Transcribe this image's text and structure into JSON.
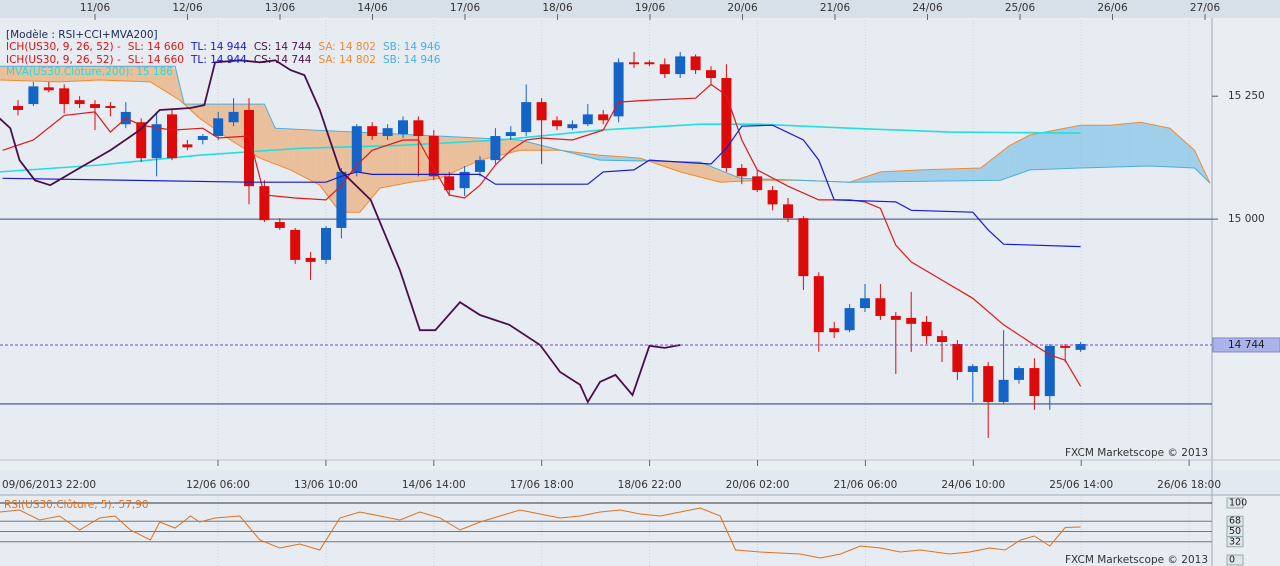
{
  "legend_header": "[Modèle : RSI+CCI+MVA200]",
  "watermark": "FXCM Marketscope © 2013",
  "chart_data": [
    {
      "type": "candlestick",
      "ylim": [
        14510,
        15405
      ],
      "yticks": [
        {
          "value": 15250,
          "label": "15 250"
        },
        {
          "value": 15000,
          "label": "15 000"
        }
      ],
      "hlines": [
        15000,
        14624
      ],
      "last_price": {
        "value": 14744,
        "label": "14 744"
      },
      "top_labels": [
        "11/06",
        "12/06",
        "13/06",
        "14/06",
        "17/06",
        "18/06",
        "19/06",
        "20/06",
        "21/06",
        "24/06",
        "25/06",
        "26/06",
        "27/06"
      ],
      "x_labels": [
        "09/06/2013 22:00",
        "12/06 06:00",
        "13/06 10:00",
        "14/06 14:00",
        "17/06 18:00",
        "18/06 22:00",
        "20/06 02:00",
        "21/06 06:00",
        "24/06 10:00",
        "25/06 14:00",
        "26/06 18:00"
      ],
      "up_color": "#1464c8",
      "down_color": "#dd0a0a",
      "open": [
        15230,
        15234,
        15268,
        15266,
        15242,
        15234,
        15230,
        15193,
        15197,
        15124,
        15213,
        15152,
        15161,
        15169,
        15197,
        15222,
        15067,
        14994,
        14978,
        14921,
        14917,
        14982,
        15096,
        15189,
        15169,
        15173,
        15201,
        15169,
        15087,
        15063,
        15096,
        15120,
        15169,
        15177,
        15238,
        15201,
        15185,
        15193,
        15213,
        15209,
        15319,
        15319,
        15315,
        15295,
        15331,
        15303,
        15287,
        15104,
        15087,
        15059,
        15030,
        15002,
        14884,
        14778,
        14774,
        14819,
        14839,
        14803,
        14799,
        14791,
        14762,
        14746,
        14689,
        14701,
        14628,
        14673,
        14697,
        14640,
        14742,
        14734
      ],
      "high": [
        15242,
        15279,
        15279,
        15274,
        15250,
        15242,
        15238,
        15238,
        15205,
        15218,
        15222,
        15161,
        15173,
        15218,
        15246,
        15246,
        15079,
        15002,
        14982,
        14933,
        14986,
        15104,
        15193,
        15197,
        15193,
        15209,
        15209,
        15181,
        15096,
        15108,
        15128,
        15185,
        15189,
        15274,
        15246,
        15209,
        15201,
        15234,
        15222,
        15327,
        15340,
        15323,
        15327,
        15340,
        15335,
        15311,
        15315,
        15112,
        15100,
        15067,
        15043,
        15006,
        14892,
        14791,
        14827,
        14868,
        14868,
        14811,
        14852,
        14803,
        14774,
        14754,
        14705,
        14709,
        14774,
        14701,
        14717,
        14746,
        14746,
        14750
      ],
      "low": [
        15211,
        15230,
        15258,
        15215,
        15226,
        15181,
        15209,
        15185,
        15116,
        15087,
        15120,
        15140,
        15152,
        15161,
        15189,
        15030,
        14994,
        14978,
        14909,
        14876,
        14909,
        14961,
        15087,
        15161,
        15161,
        15165,
        15087,
        15079,
        15047,
        15047,
        15087,
        15112,
        15161,
        15169,
        15112,
        15181,
        15181,
        15189,
        15193,
        15197,
        15307,
        15311,
        15287,
        15287,
        15295,
        15274,
        15096,
        15071,
        15055,
        15018,
        14994,
        14856,
        14730,
        14758,
        14770,
        14811,
        14795,
        14685,
        14730,
        14746,
        14709,
        14673,
        14628,
        14555,
        14624,
        14665,
        14612,
        14612,
        14709,
        14730
      ],
      "close": [
        15222,
        15270,
        15262,
        15234,
        15234,
        15226,
        15226,
        15218,
        15124,
        15193,
        15124,
        15146,
        15169,
        15205,
        15218,
        15067,
        14998,
        14982,
        14917,
        14913,
        14982,
        15096,
        15189,
        15169,
        15185,
        15201,
        15169,
        15087,
        15059,
        15096,
        15120,
        15169,
        15177,
        15238,
        15201,
        15189,
        15193,
        15213,
        15201,
        15319,
        15315,
        15315,
        15295,
        15331,
        15303,
        15287,
        15104,
        15087,
        15059,
        15030,
        15002,
        14884,
        14770,
        14770,
        14819,
        14839,
        14803,
        14795,
        14787,
        14762,
        14750,
        14689,
        14701,
        14628,
        14673,
        14697,
        14640,
        14742,
        14738,
        14746
      ],
      "indicators": [
        {
          "label": "ICH(US30, 9, 26, 52) -",
          "color": "#dd1010",
          "series": [
            {
              "name": "SL: 14 660",
              "color": "#e01818",
              "x": [
                -1,
                1,
                3,
                5,
                6,
                7,
                8,
                10,
                12,
                13,
                15,
                16,
                18,
                20,
                21,
                22,
                23,
                25,
                26,
                27,
                28,
                29,
                30,
                31,
                32,
                33,
                34,
                36,
                38,
                39,
                41,
                44,
                45,
                46,
                47,
                48,
                50,
                52,
                54,
                55,
                56,
                57,
                58,
                60,
                62,
                64,
                66,
                67,
                68,
                69
              ],
              "values": [
                15140,
                15161,
                15211,
                15218,
                15177,
                15205,
                15191,
                15181,
                15185,
                15165,
                15169,
                15049,
                15043,
                15039,
                15069,
                15110,
                15140,
                15161,
                15161,
                15104,
                15049,
                15043,
                15069,
                15110,
                15140,
                15161,
                15165,
                15161,
                15181,
                15238,
                15242,
                15246,
                15274,
                15252,
                15161,
                15100,
                15067,
                15039,
                15039,
                15035,
                15022,
                14947,
                14913,
                14876,
                14839,
                14785,
                14744,
                14724,
                14713,
                14660
              ]
            },
            {
              "name": "TL: 14 944",
              "color": "#1a1ad0",
              "x": [
                -1,
                15,
                20,
                21,
                22,
                23,
                30,
                31,
                37,
                38,
                40,
                41,
                45,
                46,
                47,
                49,
                51,
                52,
                53,
                57,
                58,
                62,
                63,
                64,
                69
              ],
              "values": [
                15083,
                15075,
                15075,
                15087,
                15096,
                15091,
                15091,
                15071,
                15071,
                15096,
                15100,
                15120,
                15112,
                15144,
                15189,
                15191,
                15161,
                15120,
                15039,
                15035,
                15018,
                15014,
                14978,
                14949,
                14944
              ]
            },
            {
              "name": "CS: 14 744",
              "color": "#4a0f4a",
              "x": [
                -1.2,
                -0.5,
                0.1,
                1.1,
                2.1,
                4,
                6,
                7.9,
                9.2,
                11.2,
                12.1,
                12.8,
                14.4,
                15.7,
                16.7,
                17.7,
                18.6,
                19.6,
                20.9,
                22.9,
                24.8,
                26.1,
                27.1,
                28.7,
                30,
                31.9,
                33.9,
                35.2,
                36.5,
                37,
                37.8,
                38.8,
                39.9,
                41,
                42,
                43
              ],
              "values": [
                15205,
                15185,
                15120,
                15079,
                15069,
                15104,
                15140,
                15181,
                15222,
                15226,
                15232,
                15319,
                15323,
                15319,
                15323,
                15303,
                15293,
                15222,
                15100,
                15039,
                14896,
                14774,
                14774,
                14831,
                14805,
                14785,
                14744,
                14689,
                14663,
                14628,
                14669,
                14683,
                14642,
                14742,
                14738,
                14744
              ]
            },
            {
              "name": "SA: 14 802",
              "color": "#f08a30",
              "x": [
                -1.2,
                2.7,
                5.3,
                8.6,
                10.5,
                11.8,
                13.8,
                15.7,
                17.7,
                19.6,
                20.9,
                22.2,
                23.5,
                25.5,
                27.4,
                30,
                32.6,
                35.2,
                37.8,
                40.4,
                43,
                45.6,
                48.2,
                50.8,
                54,
                56,
                58.6,
                62.5,
                64.4,
                65.7,
                69,
                70.9,
                72.9,
                74.8,
                76.4,
                77.4
              ],
              "values": [
                15283,
                15279,
                15283,
                15279,
                15242,
                15205,
                15161,
                15124,
                15100,
                15069,
                15014,
                15014,
                15063,
                15075,
                15083,
                15120,
                15140,
                15140,
                15130,
                15124,
                15096,
                15075,
                15079,
                15079,
                15075,
                15096,
                15100,
                15104,
                15150,
                15171,
                15191,
                15191,
                15197,
                15185,
                15140,
                15073
              ]
            },
            {
              "name": "SB: 14 946",
              "color": "#4aaee0",
              "x": [
                -1.2,
                5.3,
                10.2,
                10.8,
                16,
                16.7,
                32.6,
                37.8,
                44.3,
                46.9,
                50.8,
                54,
                63.8,
                65.7,
                69,
                73.5,
                76.4,
                77.4
              ],
              "values": [
                15311,
                15311,
                15311,
                15234,
                15234,
                15185,
                15161,
                15120,
                15116,
                15083,
                15079,
                15075,
                15079,
                15100,
                15104,
                15108,
                15104,
                15073
              ]
            }
          ]
        },
        {
          "series": [
            {
              "name": "MVA(US30.Clôture,200): 15 186",
              "color": "#22dede",
              "x": [
                -1.2,
                5.3,
                11.8,
                18.3,
                24.8,
                31.3,
                37.8,
                44.3,
                48.2,
                54,
                60.5,
                69
              ],
              "values": [
                15096,
                15110,
                15130,
                15144,
                15150,
                15161,
                15181,
                15193,
                15193,
                15185,
                15177,
                15175
              ]
            }
          ]
        }
      ]
    },
    {
      "type": "line",
      "ylim": [
        0,
        100
      ],
      "yticks": [
        100,
        68,
        50,
        32,
        0
      ],
      "series": [
        {
          "name": "RSI(US30.Clôture, 5): 57,90",
          "color": "#e07020",
          "x": [
            -1.2,
            0.1,
            1.4,
            2.7,
            4,
            5.3,
            6.3,
            7.3,
            8.6,
            9.2,
            10.2,
            11.2,
            11.8,
            12.8,
            14.4,
            15.7,
            17,
            18.3,
            19.6,
            20.9,
            22.2,
            23.5,
            24.8,
            26.1,
            27.4,
            28.7,
            30,
            31.3,
            32.6,
            33.9,
            35.2,
            36.5,
            37.8,
            39.1,
            40.4,
            41.7,
            43,
            44.3,
            45.6,
            46.6,
            48.2,
            50.8,
            52.1,
            53.4,
            54.7,
            56,
            57.3,
            58.6,
            60.5,
            61.8,
            63.1,
            64.1,
            65.1,
            66,
            67,
            68,
            69
          ],
          "values": [
            84.2,
            87.7,
            70.2,
            77.2,
            52.6,
            73.7,
            77.2,
            52.6,
            35.1,
            66.7,
            56.1,
            77.2,
            66.7,
            73.7,
            77.2,
            35.1,
            21.1,
            28.1,
            17.5,
            73.7,
            84.2,
            77.2,
            70.2,
            84.2,
            73.7,
            52.6,
            66.7,
            77.2,
            87.7,
            80.7,
            73.7,
            77.2,
            84.2,
            87.7,
            80.7,
            77.2,
            84.2,
            91.2,
            77.2,
            17.5,
            14.0,
            10.5,
            3.5,
            10.5,
            24.6,
            21.1,
            14.0,
            17.5,
            10.5,
            14.0,
            21.1,
            17.5,
            35.1,
            42.1,
            24.6,
            57.0,
            57.9
          ]
        }
      ]
    }
  ]
}
